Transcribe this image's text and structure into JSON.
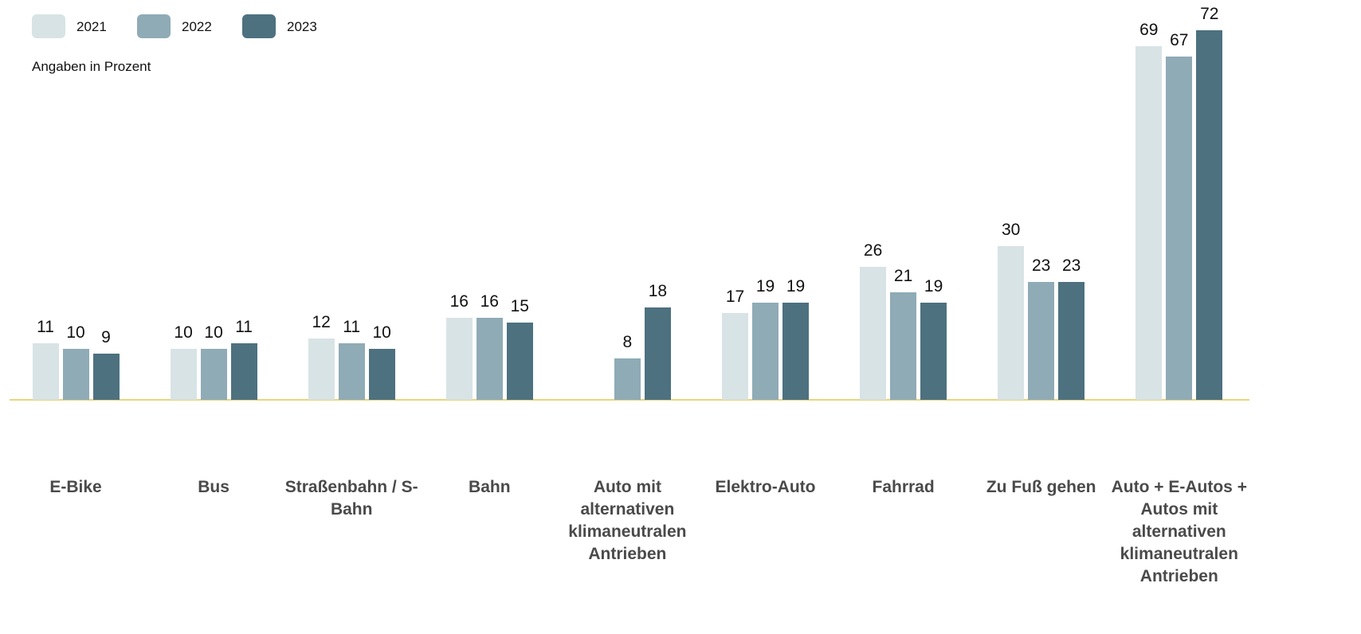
{
  "chart_data": {
    "type": "bar",
    "subtitle": "Angaben in Prozent",
    "categories": [
      "E-Bike",
      "Bus",
      "Straßenbahn / S-Bahn",
      "Bahn",
      "Auto mit alternativen klimaneutralen Antrieben",
      "Elektro-Auto",
      "Fahrrad",
      "Zu Fuß gehen",
      "Auto + E-Autos + Autos mit alternativen klimaneutralen Antrieben"
    ],
    "series": [
      {
        "name": "2021",
        "color": "#d8e3e5",
        "values": [
          11,
          10,
          12,
          16,
          null,
          17,
          26,
          30,
          69
        ]
      },
      {
        "name": "2022",
        "color": "#8fabb6",
        "values": [
          10,
          10,
          11,
          16,
          8,
          19,
          21,
          23,
          67
        ]
      },
      {
        "name": "2023",
        "color": "#4d717f",
        "values": [
          9,
          11,
          10,
          15,
          18,
          19,
          19,
          23,
          72
        ]
      }
    ],
    "legend": "top-left"
  }
}
